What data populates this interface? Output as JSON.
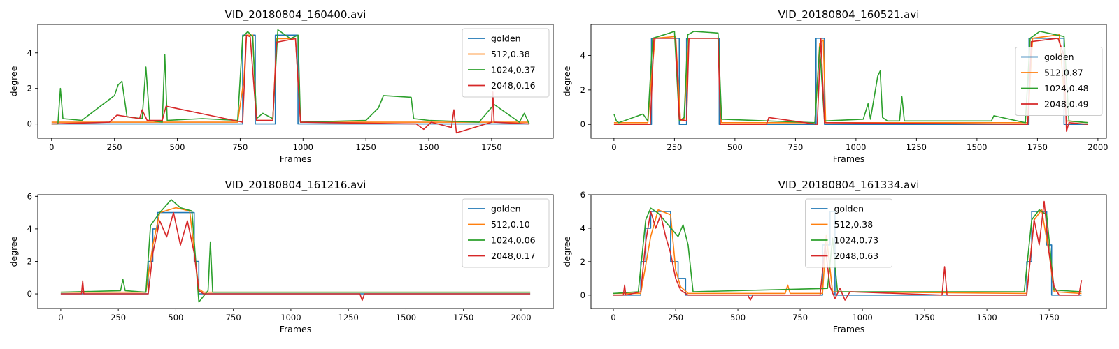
{
  "colors": {
    "golden": "#1f77b4",
    "512": "#ff7f0e",
    "1024": "#2ca02c",
    "2048": "#d62728"
  },
  "chart_data": [
    {
      "type": "line",
      "title": "VID_20180804_160400.avi",
      "xlabel": "Frames",
      "ylabel": "degree",
      "xlim": [
        -55,
        1995
      ],
      "ylim": [
        -0.8,
        5.6
      ],
      "xticks": [
        0,
        250,
        500,
        750,
        1000,
        1250,
        1500,
        1750
      ],
      "yticks": [
        0,
        2,
        4
      ],
      "legend_loc": "upper right",
      "series": [
        {
          "name": "golden",
          "color": "#1f77b4",
          "x": [
            0,
            760,
            760,
            810,
            810,
            890,
            890,
            980,
            980,
            1900
          ],
          "y": [
            0,
            0,
            5,
            5,
            0,
            0,
            5,
            5,
            0,
            0
          ]
        },
        {
          "name": "512,0.38",
          "color": "#ff7f0e",
          "x": [
            0,
            740,
            765,
            775,
            800,
            815,
            880,
            895,
            970,
            990,
            1900
          ],
          "y": [
            0.1,
            0.1,
            2.5,
            5,
            5,
            0.2,
            0.2,
            4.8,
            4.8,
            0.1,
            0.1
          ]
        },
        {
          "name": "1024,0.37",
          "color": "#2ca02c",
          "x": [
            0,
            25,
            35,
            45,
            120,
            250,
            265,
            280,
            300,
            360,
            375,
            390,
            440,
            450,
            460,
            600,
            740,
            760,
            780,
            800,
            815,
            840,
            880,
            900,
            950,
            980,
            990,
            1250,
            1300,
            1320,
            1430,
            1440,
            1500,
            1700,
            1760,
            1860,
            1880,
            1900
          ],
          "y": [
            0,
            0,
            2,
            0.3,
            0.2,
            1.6,
            2.2,
            2.4,
            0.4,
            0.3,
            3.2,
            0.2,
            0.1,
            3.9,
            0.2,
            0.3,
            0.2,
            4.9,
            5.2,
            4.9,
            0.3,
            0.6,
            0.3,
            5.3,
            4.8,
            5,
            0.1,
            0.2,
            0.9,
            1.6,
            1.5,
            0.3,
            0.2,
            0.1,
            1.1,
            0.1,
            0.6,
            0
          ]
        },
        {
          "name": "2048,0.16",
          "color": "#d62728",
          "x": [
            0,
            230,
            260,
            350,
            360,
            380,
            440,
            455,
            760,
            775,
            790,
            815,
            880,
            895,
            970,
            990,
            1450,
            1480,
            1510,
            1590,
            1600,
            1610,
            1750,
            1755,
            1760,
            1900
          ],
          "y": [
            0,
            0.1,
            0.5,
            0.3,
            0.8,
            0.2,
            0.2,
            1,
            0.1,
            5,
            4.9,
            0.2,
            0.2,
            4.6,
            4.8,
            0.1,
            0,
            -0.3,
            0.1,
            -0.2,
            0.8,
            -0.5,
            0.1,
            1.8,
            0.1,
            0
          ]
        }
      ]
    },
    {
      "type": "line",
      "title": "VID_20180804_160521.avi",
      "xlabel": "Frames",
      "ylabel": "degree",
      "xlim": [
        -95,
        2035
      ],
      "ylim": [
        -0.8,
        5.8
      ],
      "xticks": [
        0,
        250,
        500,
        750,
        1000,
        1250,
        1500,
        1750,
        2000
      ],
      "yticks": [
        0,
        2,
        4
      ],
      "legend_loc": "center right",
      "series": [
        {
          "name": "golden",
          "color": "#1f77b4",
          "x": [
            0,
            155,
            155,
            270,
            270,
            300,
            300,
            435,
            435,
            835,
            835,
            870,
            870,
            1715,
            1715,
            1860,
            1860,
            1960
          ],
          "y": [
            0,
            0,
            5,
            5,
            0,
            0,
            5,
            5,
            0,
            0,
            5,
            5,
            0,
            0,
            5,
            5,
            0,
            0
          ]
        },
        {
          "name": "512,0.87",
          "color": "#ff7f0e",
          "x": [
            0,
            140,
            160,
            170,
            255,
            275,
            290,
            310,
            430,
            445,
            830,
            850,
            865,
            875,
            1710,
            1730,
            1840,
            1870,
            1960
          ],
          "y": [
            0.1,
            0.1,
            3.5,
            5,
            5.1,
            0.2,
            0.3,
            5,
            5,
            0.1,
            0.1,
            4.7,
            4.9,
            0.1,
            0.1,
            5,
            5.2,
            0.2,
            0.1
          ]
        },
        {
          "name": "1024,0.48",
          "color": "#2ca02c",
          "x": [
            0,
            10,
            20,
            120,
            140,
            160,
            230,
            250,
            270,
            290,
            305,
            330,
            430,
            445,
            830,
            850,
            870,
            1030,
            1050,
            1060,
            1090,
            1100,
            1110,
            1130,
            1180,
            1190,
            1200,
            1560,
            1570,
            1700,
            1720,
            1760,
            1860,
            1880,
            1960
          ],
          "y": [
            0.6,
            0.2,
            0.1,
            0.6,
            0.2,
            5,
            5.3,
            5.4,
            0.2,
            0.4,
            5.2,
            5.4,
            5.3,
            0.3,
            0.1,
            4.5,
            0.2,
            0.3,
            1.2,
            0.3,
            2.8,
            3.1,
            0.4,
            0.2,
            0.2,
            1.6,
            0.2,
            0.2,
            0.5,
            0.1,
            5,
            5.4,
            5.1,
            0.2,
            0.1
          ]
        },
        {
          "name": "2048,0.49",
          "color": "#d62728",
          "x": [
            0,
            150,
            165,
            255,
            270,
            300,
            310,
            430,
            440,
            630,
            640,
            840,
            855,
            870,
            1710,
            1725,
            1835,
            1860,
            1870,
            1880,
            1960
          ],
          "y": [
            0,
            0,
            5,
            5,
            0.3,
            0.2,
            5,
            5,
            0,
            0,
            0.4,
            0,
            5,
            0.1,
            0,
            4.8,
            5,
            4,
            -0.4,
            0.1,
            0
          ]
        }
      ]
    },
    {
      "type": "line",
      "title": "VID_20180804_161216.avi",
      "xlabel": "Frames",
      "ylabel": "degree",
      "xlim": [
        -100,
        2140
      ],
      "ylim": [
        -0.9,
        6.1
      ],
      "xticks": [
        0,
        250,
        500,
        750,
        1000,
        1250,
        1500,
        1750,
        2000
      ],
      "yticks": [
        0,
        2,
        4,
        6
      ],
      "legend_loc": "upper right",
      "series": [
        {
          "name": "golden",
          "color": "#1f77b4",
          "x": [
            0,
            380,
            380,
            400,
            400,
            420,
            420,
            580,
            580,
            600,
            600,
            2040
          ],
          "y": [
            0,
            0,
            2,
            2,
            4,
            4,
            5,
            5,
            2,
            2,
            0,
            0
          ]
        },
        {
          "name": "512,0.10",
          "color": "#ff7f0e",
          "x": [
            0,
            370,
            400,
            430,
            500,
            560,
            600,
            620,
            2040
          ],
          "y": [
            0.1,
            0.1,
            3,
            5,
            5.3,
            5.1,
            0.3,
            0.1,
            0.1
          ]
        },
        {
          "name": "1024,0.06",
          "color": "#2ca02c",
          "x": [
            0,
            260,
            270,
            280,
            370,
            390,
            430,
            480,
            520,
            570,
            600,
            640,
            650,
            660,
            2040
          ],
          "y": [
            0.1,
            0.2,
            0.9,
            0.2,
            0.1,
            4.2,
            5,
            5.8,
            5.3,
            5.1,
            -0.5,
            0.2,
            3.2,
            0.1,
            0.1
          ]
        },
        {
          "name": "2048,0.17",
          "color": "#d62728",
          "x": [
            0,
            90,
            95,
            100,
            380,
            400,
            430,
            460,
            490,
            520,
            550,
            580,
            600,
            620,
            1300,
            1310,
            1320,
            2040
          ],
          "y": [
            0,
            0,
            0.8,
            0,
            0,
            2.5,
            4.5,
            3.5,
            5,
            3,
            4.5,
            2.5,
            0.2,
            0,
            0,
            -0.4,
            0,
            0
          ]
        }
      ]
    },
    {
      "type": "line",
      "title": "VID_20180804_161334.avi",
      "xlabel": "Frames",
      "ylabel": "degree",
      "xlim": [
        -90,
        1980
      ],
      "ylim": [
        -0.8,
        6.0
      ],
      "xticks": [
        0,
        250,
        500,
        750,
        1000,
        1250,
        1500,
        1750
      ],
      "yticks": [
        0,
        2,
        4,
        6
      ],
      "legend_loc": "upper center",
      "series": [
        {
          "name": "golden",
          "color": "#1f77b4",
          "x": [
            0,
            110,
            110,
            130,
            130,
            150,
            150,
            230,
            230,
            260,
            260,
            290,
            290,
            840,
            840,
            870,
            870,
            890,
            890,
            1660,
            1660,
            1680,
            1680,
            1740,
            1740,
            1760,
            1760,
            1880
          ],
          "y": [
            0,
            0,
            2,
            2,
            4,
            4,
            5,
            5,
            2,
            2,
            1,
            1,
            0,
            0,
            3,
            3,
            5,
            5,
            0,
            0,
            2,
            2,
            5,
            5,
            3,
            3,
            0,
            0
          ]
        },
        {
          "name": "512,0.38",
          "color": "#ff7f0e",
          "x": [
            0,
            110,
            150,
            180,
            230,
            250,
            270,
            300,
            690,
            700,
            710,
            840,
            855,
            880,
            1660,
            1690,
            1720,
            1750,
            1770,
            1880
          ],
          "y": [
            0.1,
            0.1,
            3.5,
            5.1,
            4.8,
            1.5,
            0.5,
            0.1,
            0.1,
            0.6,
            0.1,
            0.1,
            3.6,
            0.2,
            0.1,
            4.5,
            5.1,
            2.5,
            0.2,
            0.1
          ]
        },
        {
          "name": "1024,0.73",
          "color": "#2ca02c",
          "x": [
            0,
            100,
            130,
            150,
            180,
            220,
            260,
            280,
            300,
            320,
            860,
            880,
            900,
            1650,
            1680,
            1710,
            1740,
            1770,
            1880
          ],
          "y": [
            0.1,
            0.2,
            4.5,
            5.2,
            4.9,
            4.2,
            3.5,
            4.2,
            3,
            0.2,
            0.4,
            3.4,
            0.2,
            0.2,
            4.5,
            5.1,
            4.8,
            0.3,
            0.2
          ]
        },
        {
          "name": "2048,0.63",
          "color": "#d62728",
          "x": [
            0,
            40,
            45,
            50,
            110,
            130,
            150,
            170,
            190,
            210,
            230,
            250,
            270,
            300,
            540,
            550,
            560,
            830,
            850,
            870,
            890,
            910,
            930,
            950,
            1320,
            1330,
            1340,
            1660,
            1690,
            1710,
            1730,
            1750,
            1770,
            1790,
            1870,
            1880
          ],
          "y": [
            0,
            0,
            0.6,
            0,
            0.2,
            3.2,
            5,
            4,
            4.8,
            3.5,
            2.5,
            1,
            0.3,
            0,
            0,
            -0.3,
            0,
            0,
            3,
            0.5,
            -0.2,
            0.4,
            -0.3,
            0.2,
            0,
            1.7,
            0,
            0,
            4.5,
            3,
            5.6,
            2.5,
            0.5,
            0,
            0,
            0.9
          ]
        }
      ]
    }
  ]
}
